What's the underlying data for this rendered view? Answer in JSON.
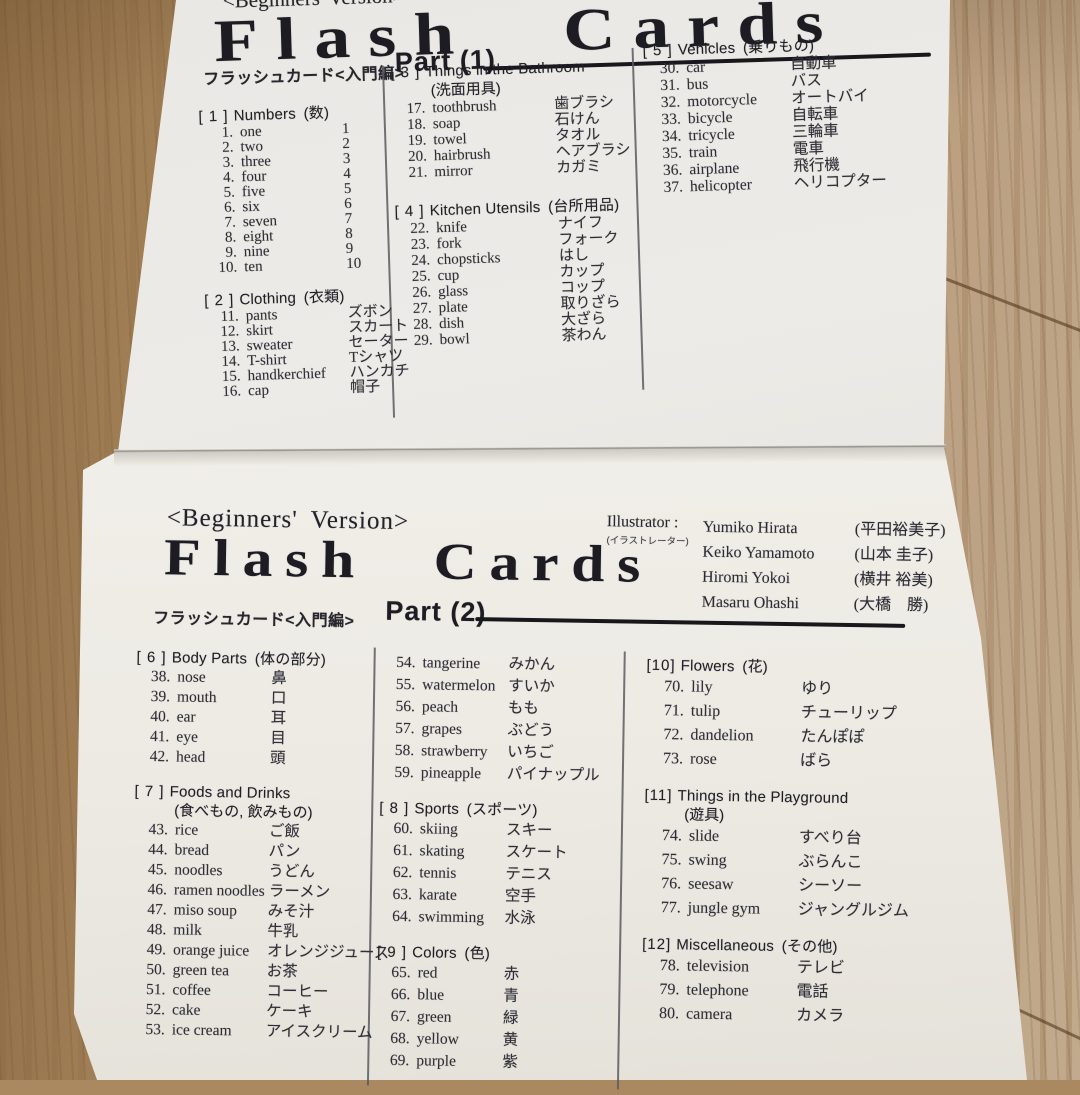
{
  "palette": {
    "paper": "#efede8",
    "ink": "#26262c",
    "wood": "#ab8960"
  },
  "sheet1": {
    "version_label": "<Beginners' Version>",
    "title": "Flash Cards",
    "subtitle_jp": "フラッシュカード<入門編>",
    "part_label": "Part (1)",
    "columns": [
      [
        {
          "tag": "[ 1 ]",
          "name": "Numbers",
          "jp": "(数)",
          "items": [
            {
              "n": "1.",
              "en": "one",
              "jp": "1"
            },
            {
              "n": "2.",
              "en": "two",
              "jp": "2"
            },
            {
              "n": "3.",
              "en": "three",
              "jp": "3"
            },
            {
              "n": "4.",
              "en": "four",
              "jp": "4"
            },
            {
              "n": "5.",
              "en": "five",
              "jp": "5"
            },
            {
              "n": "6.",
              "en": "six",
              "jp": "6"
            },
            {
              "n": "7.",
              "en": "seven",
              "jp": "7"
            },
            {
              "n": "8.",
              "en": "eight",
              "jp": "8"
            },
            {
              "n": "9.",
              "en": "nine",
              "jp": "9"
            },
            {
              "n": "10.",
              "en": "ten",
              "jp": "10"
            }
          ]
        },
        {
          "tag": "[ 2 ]",
          "name": "Clothing",
          "jp": "(衣類)",
          "items": [
            {
              "n": "11.",
              "en": "pants",
              "jp": "ズボン"
            },
            {
              "n": "12.",
              "en": "skirt",
              "jp": "スカート"
            },
            {
              "n": "13.",
              "en": "sweater",
              "jp": "セーター"
            },
            {
              "n": "14.",
              "en": "T-shirt",
              "jp": "Tシャツ"
            },
            {
              "n": "15.",
              "en": "handkerchief",
              "jp": "ハンカチ"
            },
            {
              "n": "16.",
              "en": "cap",
              "jp": "帽子"
            }
          ]
        }
      ],
      [
        {
          "tag": "[ 3 ]",
          "name": "Things in the Bathroom",
          "jp2": "(洗面用具)",
          "items": [
            {
              "n": "17.",
              "en": "toothbrush",
              "jp": "歯ブラシ"
            },
            {
              "n": "18.",
              "en": "soap",
              "jp": "石けん"
            },
            {
              "n": "19.",
              "en": "towel",
              "jp": "タオル"
            },
            {
              "n": "20.",
              "en": "hairbrush",
              "jp": "ヘアブラシ"
            },
            {
              "n": "21.",
              "en": "mirror",
              "jp": "カガミ"
            }
          ]
        },
        {
          "tag": "[ 4 ]",
          "name": "Kitchen Utensils",
          "jp": "(台所用品)",
          "items": [
            {
              "n": "22.",
              "en": "knife",
              "jp": "ナイフ"
            },
            {
              "n": "23.",
              "en": "fork",
              "jp": "フォーク"
            },
            {
              "n": "24.",
              "en": "chopsticks",
              "jp": "はし"
            },
            {
              "n": "25.",
              "en": "cup",
              "jp": "カップ"
            },
            {
              "n": "26.",
              "en": "glass",
              "jp": "コップ"
            },
            {
              "n": "27.",
              "en": "plate",
              "jp": "取りざら"
            },
            {
              "n": "28.",
              "en": "dish",
              "jp": "大ざら"
            },
            {
              "n": "29.",
              "en": "bowl",
              "jp": "茶わん"
            }
          ]
        }
      ],
      [
        {
          "tag": "[ 5 ]",
          "name": "Vehicles",
          "jp": "(乗りもの)",
          "items": [
            {
              "n": "30.",
              "en": "car",
              "jp": "自動車"
            },
            {
              "n": "31.",
              "en": "bus",
              "jp": "バス"
            },
            {
              "n": "32.",
              "en": "motorcycle",
              "jp": "オートバイ"
            },
            {
              "n": "33.",
              "en": "bicycle",
              "jp": "自転車"
            },
            {
              "n": "34.",
              "en": "tricycle",
              "jp": "三輪車"
            },
            {
              "n": "35.",
              "en": "train",
              "jp": "電車"
            },
            {
              "n": "36.",
              "en": "airplane",
              "jp": "飛行機"
            },
            {
              "n": "37.",
              "en": "helicopter",
              "jp": "ヘリコプター"
            }
          ]
        }
      ]
    ]
  },
  "sheet2": {
    "version_label": "<Beginners' Version>",
    "title": "Flash Cards",
    "subtitle_jp": "フラッシュカード<入門編>",
    "part_label": "Part (2)",
    "illustrator": {
      "label": "Illustrator :",
      "label_jp": "(イラストレーター)",
      "credits": [
        {
          "en": "Yumiko Hirata",
          "jp": "(平田裕美子)"
        },
        {
          "en": "Keiko Yamamoto",
          "jp": "(山本 圭子)"
        },
        {
          "en": "Hiromi Yokoi",
          "jp": "(横井 裕美)"
        },
        {
          "en": "Masaru Ohashi",
          "jp": "(大橋　勝)"
        }
      ]
    },
    "columns": [
      [
        {
          "tag": "[ 6 ]",
          "name": "Body Parts",
          "jp": "(体の部分)",
          "items": [
            {
              "n": "38.",
              "en": "nose",
              "jp": "鼻"
            },
            {
              "n": "39.",
              "en": "mouth",
              "jp": "口"
            },
            {
              "n": "40.",
              "en": "ear",
              "jp": "耳"
            },
            {
              "n": "41.",
              "en": "eye",
              "jp": "目"
            },
            {
              "n": "42.",
              "en": "head",
              "jp": "頭"
            }
          ]
        },
        {
          "tag": "[ 7 ]",
          "name": "Foods and Drinks",
          "jp2": "(食べもの, 飲みもの)",
          "items": [
            {
              "n": "43.",
              "en": "rice",
              "jp": "ご飯"
            },
            {
              "n": "44.",
              "en": "bread",
              "jp": "パン"
            },
            {
              "n": "45.",
              "en": "noodles",
              "jp": "うどん"
            },
            {
              "n": "46.",
              "en": "ramen noodles",
              "jp": "ラーメン"
            },
            {
              "n": "47.",
              "en": "miso soup",
              "jp": "みそ汁"
            },
            {
              "n": "48.",
              "en": "milk",
              "jp": "牛乳"
            },
            {
              "n": "49.",
              "en": "orange juice",
              "jp": "オレンジジュース"
            },
            {
              "n": "50.",
              "en": "green tea",
              "jp": "お茶"
            },
            {
              "n": "51.",
              "en": "coffee",
              "jp": "コーヒー"
            },
            {
              "n": "52.",
              "en": "cake",
              "jp": "ケーキ"
            },
            {
              "n": "53.",
              "en": "ice cream",
              "jp": "アイスクリーム"
            }
          ]
        }
      ],
      [
        {
          "items": [
            {
              "n": "54.",
              "en": "tangerine",
              "jp": "みかん"
            },
            {
              "n": "55.",
              "en": "watermelon",
              "jp": "すいか"
            },
            {
              "n": "56.",
              "en": "peach",
              "jp": "もも"
            },
            {
              "n": "57.",
              "en": "grapes",
              "jp": "ぶどう"
            },
            {
              "n": "58.",
              "en": "strawberry",
              "jp": "いちご"
            },
            {
              "n": "59.",
              "en": "pineapple",
              "jp": "パイナップル"
            }
          ]
        },
        {
          "tag": "[ 8 ]",
          "name": "Sports",
          "jp": "(スポーツ)",
          "items": [
            {
              "n": "60.",
              "en": "skiing",
              "jp": "スキー"
            },
            {
              "n": "61.",
              "en": "skating",
              "jp": "スケート"
            },
            {
              "n": "62.",
              "en": "tennis",
              "jp": "テニス"
            },
            {
              "n": "63.",
              "en": "karate",
              "jp": "空手"
            },
            {
              "n": "64.",
              "en": "swimming",
              "jp": "水泳"
            }
          ]
        },
        {
          "tag": "[ 9 ]",
          "name": "Colors",
          "jp": "(色)",
          "items": [
            {
              "n": "65.",
              "en": "red",
              "jp": "赤"
            },
            {
              "n": "66.",
              "en": "blue",
              "jp": "青"
            },
            {
              "n": "67.",
              "en": "green",
              "jp": "緑"
            },
            {
              "n": "68.",
              "en": "yellow",
              "jp": "黄"
            },
            {
              "n": "69.",
              "en": "purple",
              "jp": "紫"
            }
          ]
        }
      ],
      [
        {
          "tag": "[10]",
          "name": "Flowers",
          "jp": "(花)",
          "items": [
            {
              "n": "70.",
              "en": "lily",
              "jp": "ゆり"
            },
            {
              "n": "71.",
              "en": "tulip",
              "jp": "チューリップ"
            },
            {
              "n": "72.",
              "en": "dandelion",
              "jp": "たんぽぽ"
            },
            {
              "n": "73.",
              "en": "rose",
              "jp": "ばら"
            }
          ]
        },
        {
          "tag": "[11]",
          "name": "Things in the Playground",
          "jp2": "(遊具)",
          "items": [
            {
              "n": "74.",
              "en": "slide",
              "jp": "すべり台"
            },
            {
              "n": "75.",
              "en": "swing",
              "jp": "ぶらんこ"
            },
            {
              "n": "76.",
              "en": "seesaw",
              "jp": "シーソー"
            },
            {
              "n": "77.",
              "en": "jungle gym",
              "jp": "ジャングルジム"
            }
          ]
        },
        {
          "tag": "[12]",
          "name": "Miscellaneous",
          "jp": "(その他)",
          "items": [
            {
              "n": "78.",
              "en": "television",
              "jp": "テレビ"
            },
            {
              "n": "79.",
              "en": "telephone",
              "jp": "電話"
            },
            {
              "n": "80.",
              "en": "camera",
              "jp": "カメラ"
            }
          ]
        }
      ]
    ]
  }
}
